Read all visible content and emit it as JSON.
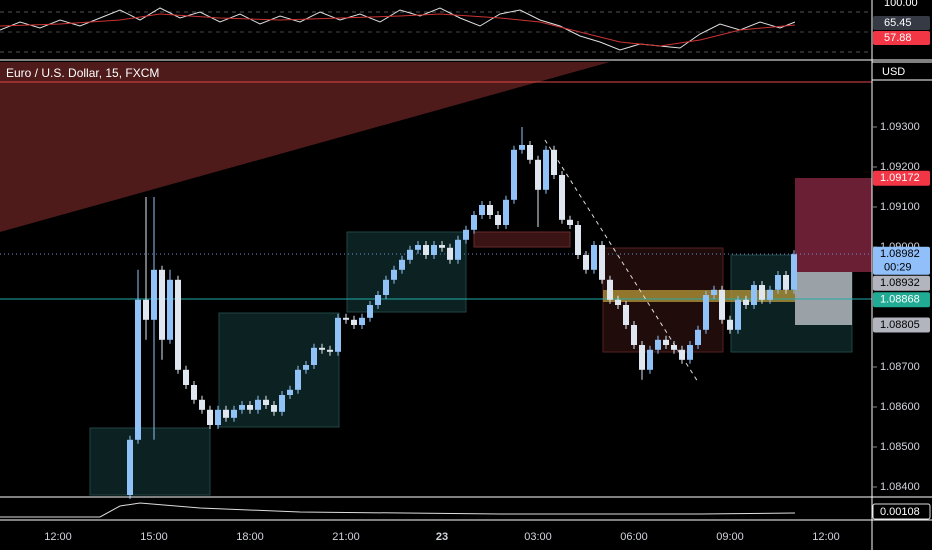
{
  "chart_data": {
    "type": "candlestick",
    "title": "Euro / U.S. Dollar, 15, FXCM",
    "currency": "USD",
    "x": [
      "14:15",
      "14:30",
      "14:45",
      "15:00",
      "15:15",
      "15:30",
      "15:45",
      "16:00",
      "16:15",
      "16:30",
      "16:45",
      "17:00",
      "17:15",
      "17:30",
      "17:45",
      "18:00",
      "18:15",
      "18:30",
      "18:45",
      "19:00",
      "19:15",
      "19:30",
      "19:45",
      "20:00",
      "20:15",
      "20:30",
      "20:45",
      "21:00",
      "21:15",
      "21:30",
      "21:45",
      "22:00",
      "22:15",
      "22:30",
      "22:45",
      "23:00",
      "23:15",
      "23:30",
      "23:45",
      "00:00",
      "00:15",
      "00:30",
      "00:45",
      "01:00",
      "01:15",
      "01:30",
      "01:45",
      "02:00",
      "02:15",
      "02:30",
      "02:45",
      "03:00",
      "03:15",
      "03:30",
      "03:45",
      "04:00",
      "04:15",
      "04:30",
      "04:45",
      "05:00",
      "05:15",
      "05:30",
      "05:45",
      "06:00",
      "06:15",
      "06:30",
      "06:45",
      "07:00",
      "07:15",
      "07:30",
      "07:45",
      "08:00",
      "08:15",
      "08:30",
      "08:45",
      "09:00",
      "09:15",
      "09:30",
      "09:45",
      "10:00",
      "10:15",
      "10:30",
      "10:45",
      "11:00"
    ],
    "open": [
      1.0838,
      1.08518,
      1.08868,
      1.08818,
      1.08943,
      1.08768,
      1.08918,
      1.08693,
      1.08655,
      1.08618,
      1.08593,
      1.08555,
      1.08593,
      1.08573,
      1.08593,
      1.08605,
      1.08593,
      1.08618,
      1.08605,
      1.08588,
      1.0863,
      1.08643,
      1.08693,
      1.08705,
      1.08748,
      1.08743,
      1.08738,
      1.08823,
      1.08818,
      1.08805,
      1.08823,
      1.08855,
      1.0888,
      1.08918,
      1.08943,
      1.08968,
      1.08993,
      1.09005,
      1.0898,
      1.09005,
      1.08998,
      1.08968,
      1.09018,
      1.09043,
      1.0908,
      1.09105,
      1.0908,
      1.09055,
      1.09118,
      1.09243,
      1.09255,
      1.09218,
      1.09143,
      1.09243,
      1.0918,
      1.09068,
      1.09055,
      1.0898,
      1.08943,
      1.09005,
      1.08918,
      1.08868,
      1.08855,
      1.08805,
      1.08755,
      1.08693,
      1.08743,
      1.08768,
      1.08755,
      1.08743,
      1.08718,
      1.08755,
      1.08793,
      1.0888,
      1.08893,
      1.08818,
      1.08793,
      1.08868,
      1.08855,
      1.08905,
      1.08868,
      1.08893,
      1.0893,
      1.08893
    ],
    "high": [
      1.08528,
      1.08943,
      1.09125,
      1.09125,
      1.08953,
      1.08943,
      1.08928,
      1.08703,
      1.08665,
      1.08628,
      1.08603,
      1.08603,
      1.08603,
      1.08603,
      1.08615,
      1.08615,
      1.08628,
      1.08628,
      1.08615,
      1.0864,
      1.08653,
      1.08703,
      1.08715,
      1.08758,
      1.08758,
      1.08753,
      1.08833,
      1.08833,
      1.08828,
      1.08833,
      1.08865,
      1.0889,
      1.08928,
      1.08953,
      1.08978,
      1.09003,
      1.09015,
      1.09015,
      1.09015,
      1.09015,
      1.09008,
      1.09028,
      1.09053,
      1.0909,
      1.09115,
      1.09115,
      1.0909,
      1.09128,
      1.09253,
      1.093,
      1.09265,
      1.09228,
      1.09253,
      1.09253,
      1.0919,
      1.09078,
      1.09065,
      1.0899,
      1.09015,
      1.09015,
      1.08928,
      1.08878,
      1.08865,
      1.08815,
      1.08765,
      1.08753,
      1.08778,
      1.08778,
      1.08765,
      1.08753,
      1.08765,
      1.08803,
      1.0889,
      1.08903,
      1.08903,
      1.08828,
      1.08878,
      1.08878,
      1.08915,
      1.08915,
      1.08903,
      1.0894,
      1.0894,
      1.08992
    ],
    "low": [
      1.0837,
      1.08508,
      1.08768,
      1.08518,
      1.08718,
      1.08758,
      1.08683,
      1.08645,
      1.08608,
      1.08583,
      1.08545,
      1.08545,
      1.08563,
      1.08563,
      1.08583,
      1.08583,
      1.08583,
      1.08595,
      1.08578,
      1.08578,
      1.0862,
      1.08633,
      1.08683,
      1.08695,
      1.08733,
      1.08728,
      1.08728,
      1.08808,
      1.08795,
      1.08795,
      1.08813,
      1.08845,
      1.0887,
      1.08908,
      1.08933,
      1.08958,
      1.08983,
      1.0897,
      1.0897,
      1.08988,
      1.08958,
      1.08958,
      1.09008,
      1.09033,
      1.0907,
      1.0907,
      1.09045,
      1.09045,
      1.09108,
      1.09233,
      1.09208,
      1.0905,
      1.09133,
      1.0917,
      1.09058,
      1.09045,
      1.0897,
      1.08933,
      1.08933,
      1.08908,
      1.08858,
      1.08845,
      1.08795,
      1.08745,
      1.08668,
      1.08683,
      1.08733,
      1.08745,
      1.08733,
      1.08708,
      1.08708,
      1.08745,
      1.08783,
      1.0887,
      1.08808,
      1.08783,
      1.08783,
      1.08845,
      1.08845,
      1.08858,
      1.08858,
      1.08883,
      1.08883,
      1.08883
    ],
    "close": [
      1.08518,
      1.08868,
      1.08818,
      1.08943,
      1.08768,
      1.08918,
      1.08693,
      1.08655,
      1.08618,
      1.08593,
      1.08555,
      1.08593,
      1.08573,
      1.08593,
      1.08605,
      1.08593,
      1.08618,
      1.08605,
      1.08588,
      1.0863,
      1.08643,
      1.08693,
      1.08705,
      1.08748,
      1.08743,
      1.08738,
      1.08823,
      1.08818,
      1.08805,
      1.08823,
      1.08855,
      1.0888,
      1.08918,
      1.08943,
      1.08968,
      1.08993,
      1.09005,
      1.0898,
      1.09005,
      1.08998,
      1.08968,
      1.09018,
      1.09043,
      1.0908,
      1.09105,
      1.0908,
      1.09055,
      1.09118,
      1.09243,
      1.09255,
      1.09218,
      1.09143,
      1.09243,
      1.0918,
      1.09068,
      1.09055,
      1.0898,
      1.08943,
      1.09005,
      1.08918,
      1.08868,
      1.08855,
      1.08805,
      1.08755,
      1.08693,
      1.08743,
      1.08768,
      1.08755,
      1.08743,
      1.08718,
      1.08755,
      1.08793,
      1.0888,
      1.08893,
      1.08818,
      1.08793,
      1.08868,
      1.08855,
      1.08905,
      1.08868,
      1.08893,
      1.0893,
      1.08893,
      1.08982
    ],
    "up_color": "#90c2f7",
    "down_color": "#dfe6ef",
    "ylim": [
      1.08375,
      1.094625
    ],
    "yticks": [
      {
        "value": 1.084,
        "label": "1.08400"
      },
      {
        "value": 1.085,
        "label": "1.08500"
      },
      {
        "value": 1.086,
        "label": "1.08600"
      },
      {
        "value": 1.087,
        "label": "1.08700"
      },
      {
        "value": 1.088,
        "label": "1.08800"
      },
      {
        "value": 1.089,
        "label": "1.08900"
      },
      {
        "value": 1.09,
        "label": "1.09000"
      },
      {
        "value": 1.091,
        "label": "1.09100"
      },
      {
        "value": 1.092,
        "label": "1.09200"
      },
      {
        "value": 1.093,
        "label": "1.09300"
      }
    ],
    "xticks": [
      "12:00",
      "15:00",
      "18:00",
      "21:00",
      "23",
      "03:00",
      "06:00",
      "09:00",
      "12:00"
    ]
  },
  "price_labels": [
    {
      "value": 1.09172,
      "color": "#f23645"
    },
    {
      "value": 1.08982,
      "color": "#90bff9"
    },
    {
      "value": 1.08932,
      "color": "#b2b5be"
    },
    {
      "value": 1.08868,
      "color": "#22ab94"
    },
    {
      "value": 1.08805,
      "color": "#b2b5be"
    }
  ],
  "countdown": "00:29",
  "rsi": {
    "labels": [
      {
        "value": 100,
        "label": "100.00",
        "color": "#000"
      },
      {
        "value": 65.45,
        "color": "#363a45"
      },
      {
        "value": 57.88,
        "color": "#f23645"
      }
    ]
  },
  "indicator": {
    "value": 0.00108
  }
}
